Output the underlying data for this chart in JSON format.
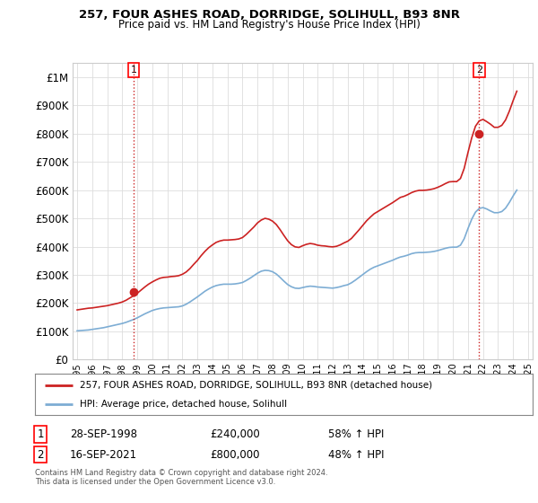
{
  "title_line1": "257, FOUR ASHES ROAD, DORRIDGE, SOLIHULL, B93 8NR",
  "title_line2": "Price paid vs. HM Land Registry's House Price Index (HPI)",
  "sale1_date": "28-SEP-1998",
  "sale1_price": 240000,
  "sale1_hpi": "58% ↑ HPI",
  "sale2_date": "16-SEP-2021",
  "sale2_price": 800000,
  "sale2_hpi": "48% ↑ HPI",
  "legend_line1": "257, FOUR ASHES ROAD, DORRIDGE, SOLIHULL, B93 8NR (detached house)",
  "legend_line2": "HPI: Average price, detached house, Solihull",
  "footer": "Contains HM Land Registry data © Crown copyright and database right 2024.\nThis data is licensed under the Open Government Licence v3.0.",
  "hpi_color": "#7dadd4",
  "price_color": "#cc2222",
  "vline_color": "#cc2222",
  "ylim": [
    0,
    1050000
  ],
  "yticks": [
    0,
    100000,
    200000,
    300000,
    400000,
    500000,
    600000,
    700000,
    800000,
    900000,
    1000000
  ],
  "hpi_x": [
    1995.0,
    1995.25,
    1995.5,
    1995.75,
    1996.0,
    1996.25,
    1996.5,
    1996.75,
    1997.0,
    1997.25,
    1997.5,
    1997.75,
    1998.0,
    1998.25,
    1998.5,
    1998.75,
    1999.0,
    1999.25,
    1999.5,
    1999.75,
    2000.0,
    2000.25,
    2000.5,
    2000.75,
    2001.0,
    2001.25,
    2001.5,
    2001.75,
    2002.0,
    2002.25,
    2002.5,
    2002.75,
    2003.0,
    2003.25,
    2003.5,
    2003.75,
    2004.0,
    2004.25,
    2004.5,
    2004.75,
    2005.0,
    2005.25,
    2005.5,
    2005.75,
    2006.0,
    2006.25,
    2006.5,
    2006.75,
    2007.0,
    2007.25,
    2007.5,
    2007.75,
    2008.0,
    2008.25,
    2008.5,
    2008.75,
    2009.0,
    2009.25,
    2009.5,
    2009.75,
    2010.0,
    2010.25,
    2010.5,
    2010.75,
    2011.0,
    2011.25,
    2011.5,
    2011.75,
    2012.0,
    2012.25,
    2012.5,
    2012.75,
    2013.0,
    2013.25,
    2013.5,
    2013.75,
    2014.0,
    2014.25,
    2014.5,
    2014.75,
    2015.0,
    2015.25,
    2015.5,
    2015.75,
    2016.0,
    2016.25,
    2016.5,
    2016.75,
    2017.0,
    2017.25,
    2017.5,
    2017.75,
    2018.0,
    2018.25,
    2018.5,
    2018.75,
    2019.0,
    2019.25,
    2019.5,
    2019.75,
    2020.0,
    2020.25,
    2020.5,
    2020.75,
    2021.0,
    2021.25,
    2021.5,
    2021.75,
    2022.0,
    2022.25,
    2022.5,
    2022.75,
    2023.0,
    2023.25,
    2023.5,
    2023.75,
    2024.0,
    2024.25
  ],
  "hpi_y": [
    102000,
    103000,
    104000,
    105000,
    107000,
    109000,
    111000,
    113000,
    116000,
    119000,
    122000,
    125000,
    128000,
    132000,
    137000,
    142000,
    148000,
    155000,
    162000,
    168000,
    174000,
    178000,
    181000,
    183000,
    184000,
    185000,
    186000,
    187000,
    190000,
    196000,
    204000,
    213000,
    222000,
    232000,
    242000,
    250000,
    257000,
    262000,
    265000,
    267000,
    267000,
    267000,
    268000,
    270000,
    273000,
    280000,
    288000,
    297000,
    306000,
    313000,
    316000,
    315000,
    311000,
    303000,
    291000,
    278000,
    266000,
    258000,
    253000,
    252000,
    255000,
    258000,
    260000,
    259000,
    257000,
    256000,
    255000,
    254000,
    253000,
    255000,
    258000,
    262000,
    265000,
    272000,
    281000,
    291000,
    301000,
    311000,
    320000,
    327000,
    332000,
    337000,
    342000,
    347000,
    352000,
    358000,
    363000,
    366000,
    370000,
    375000,
    378000,
    379000,
    379000,
    380000,
    381000,
    383000,
    386000,
    390000,
    394000,
    397000,
    398000,
    398000,
    405000,
    428000,
    464000,
    497000,
    522000,
    535000,
    538000,
    533000,
    526000,
    520000,
    520000,
    524000,
    536000,
    556000,
    579000,
    600000
  ],
  "price_x": [
    1995.0,
    1995.25,
    1995.5,
    1995.75,
    1996.0,
    1996.25,
    1996.5,
    1996.75,
    1997.0,
    1997.25,
    1997.5,
    1997.75,
    1998.0,
    1998.25,
    1998.5,
    1998.75,
    1999.0,
    1999.25,
    1999.5,
    1999.75,
    2000.0,
    2000.25,
    2000.5,
    2000.75,
    2001.0,
    2001.25,
    2001.5,
    2001.75,
    2002.0,
    2002.25,
    2002.5,
    2002.75,
    2003.0,
    2003.25,
    2003.5,
    2003.75,
    2004.0,
    2004.25,
    2004.5,
    2004.75,
    2005.0,
    2005.25,
    2005.5,
    2005.75,
    2006.0,
    2006.25,
    2006.5,
    2006.75,
    2007.0,
    2007.25,
    2007.5,
    2007.75,
    2008.0,
    2008.25,
    2008.5,
    2008.75,
    2009.0,
    2009.25,
    2009.5,
    2009.75,
    2010.0,
    2010.25,
    2010.5,
    2010.75,
    2011.0,
    2011.25,
    2011.5,
    2011.75,
    2012.0,
    2012.25,
    2012.5,
    2012.75,
    2013.0,
    2013.25,
    2013.5,
    2013.75,
    2014.0,
    2014.25,
    2014.5,
    2014.75,
    2015.0,
    2015.25,
    2015.5,
    2015.75,
    2016.0,
    2016.25,
    2016.5,
    2016.75,
    2017.0,
    2017.25,
    2017.5,
    2017.75,
    2018.0,
    2018.25,
    2018.5,
    2018.75,
    2019.0,
    2019.25,
    2019.5,
    2019.75,
    2020.0,
    2020.25,
    2020.5,
    2020.75,
    2021.0,
    2021.25,
    2021.5,
    2021.75,
    2022.0,
    2022.25,
    2022.5,
    2022.75,
    2023.0,
    2023.25,
    2023.5,
    2023.75,
    2024.0,
    2024.25
  ],
  "price_y": [
    176000,
    178000,
    180000,
    182000,
    183000,
    185000,
    187000,
    189000,
    191000,
    194000,
    197000,
    200000,
    204000,
    210000,
    218000,
    226000,
    235000,
    246000,
    257000,
    267000,
    275000,
    282000,
    288000,
    291000,
    292000,
    294000,
    295000,
    297000,
    302000,
    310000,
    322000,
    337000,
    351000,
    368000,
    383000,
    396000,
    406000,
    415000,
    420000,
    423000,
    423000,
    424000,
    425000,
    427000,
    432000,
    443000,
    456000,
    469000,
    484000,
    494000,
    500000,
    497000,
    490000,
    478000,
    460000,
    440000,
    421000,
    407000,
    399000,
    397000,
    403000,
    408000,
    411000,
    409000,
    405000,
    403000,
    402000,
    400000,
    399000,
    401000,
    406000,
    413000,
    419000,
    429000,
    444000,
    459000,
    475000,
    491000,
    504000,
    516000,
    524000,
    532000,
    540000,
    548000,
    556000,
    565000,
    574000,
    578000,
    584000,
    591000,
    596000,
    599000,
    599000,
    600000,
    602000,
    605000,
    610000,
    616000,
    623000,
    629000,
    630000,
    630000,
    641000,
    677000,
    733000,
    785000,
    826000,
    845000,
    850000,
    842000,
    833000,
    822000,
    822000,
    829000,
    848000,
    879000,
    916000,
    950000
  ],
  "sale1_x": 1998.75,
  "sale2_x": 2021.75,
  "bg_color": "#ffffff",
  "grid_color": "#dddddd"
}
